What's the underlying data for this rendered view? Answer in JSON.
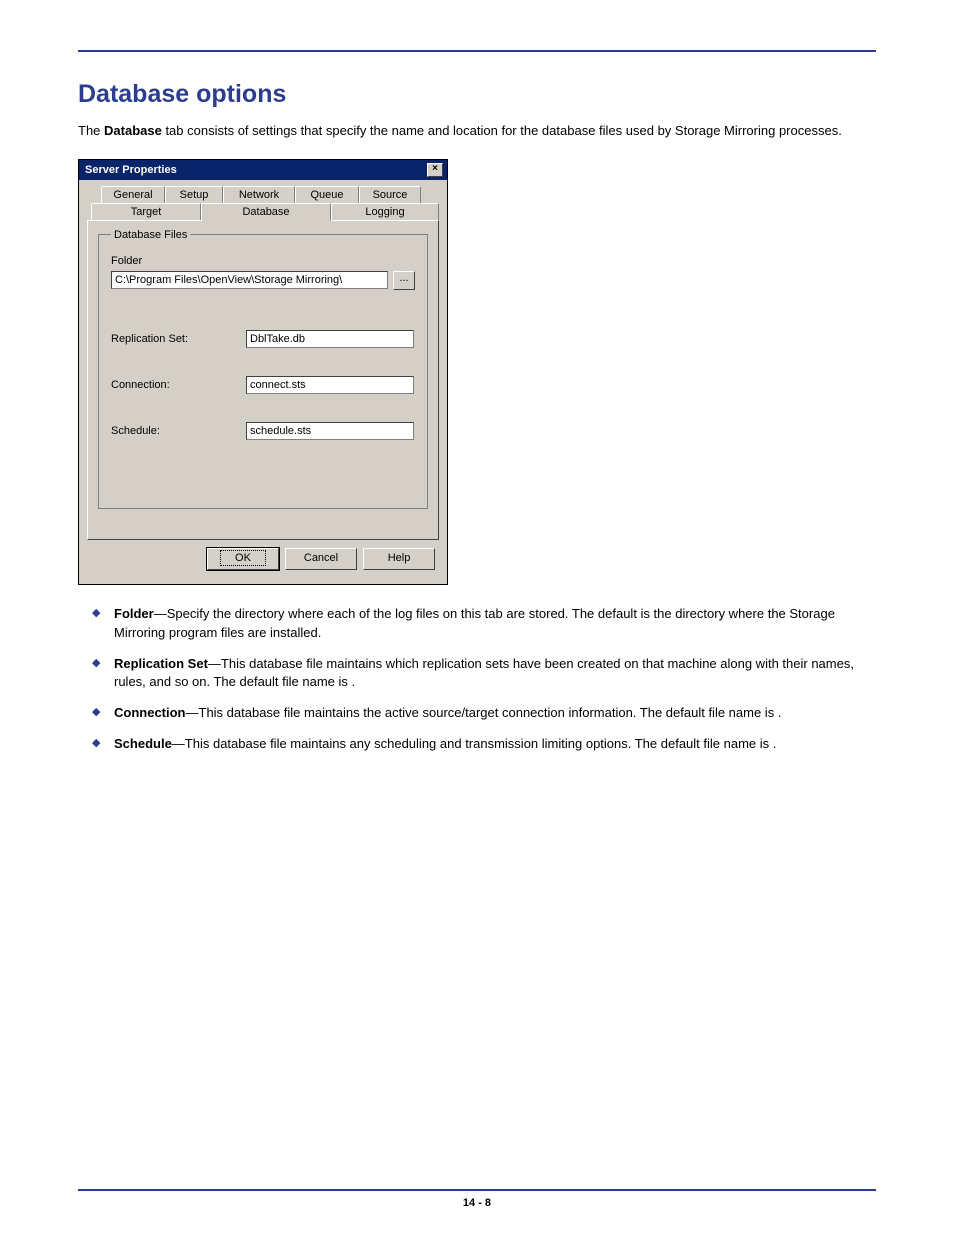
{
  "page": {
    "title": "Database options",
    "intro_prefix": "The ",
    "intro_bold": "Database",
    "intro_rest": " tab consists of settings that specify the name and location for the database files used by Storage Mirroring processes.",
    "footer": "14 - 8"
  },
  "dialog": {
    "title": "Server Properties",
    "tabs_row1": [
      "General",
      "Setup",
      "Network",
      "Queue",
      "Source"
    ],
    "tabs_row2": [
      "Target",
      "Database",
      "Logging"
    ],
    "active_tab": "Database",
    "group_legend": "Database Files",
    "folder_label": "Folder",
    "folder_value": "C:\\Program Files\\OpenView\\Storage Mirroring\\",
    "browse_label": "...",
    "fields": {
      "replication_set": {
        "label": "Replication Set:",
        "value": "DblTake.db"
      },
      "connection": {
        "label": "Connection:",
        "value": "connect.sts"
      },
      "schedule": {
        "label": "Schedule:",
        "value": "schedule.sts"
      }
    },
    "buttons": {
      "ok": "OK",
      "cancel": "Cancel",
      "help": "Help"
    }
  },
  "bullets": [
    {
      "term": "Folder",
      "text": "—Specify the directory where each of the log files on this tab are stored. The default is the directory where the Storage Mirroring program files are installed."
    },
    {
      "term": "Replication Set",
      "text": "—This database file maintains which replication sets have been created on that machine along with their names, rules, and so on. The default file name is ."
    },
    {
      "term": "Connection",
      "text": "—This database file maintains the active source/target connection information. The default file name is ."
    },
    {
      "term": "Schedule",
      "text": "—This database file maintains any scheduling and transmission limiting options. The default file name is ."
    }
  ],
  "style": {
    "accent_color": "#2a3d8f",
    "dialog_bg": "#d4d0c8",
    "titlebar_bg": "#0a246a",
    "tab_widths_row1": [
      64,
      58,
      72,
      64,
      62
    ],
    "tab_widths_row2": [
      110,
      130,
      108
    ]
  }
}
